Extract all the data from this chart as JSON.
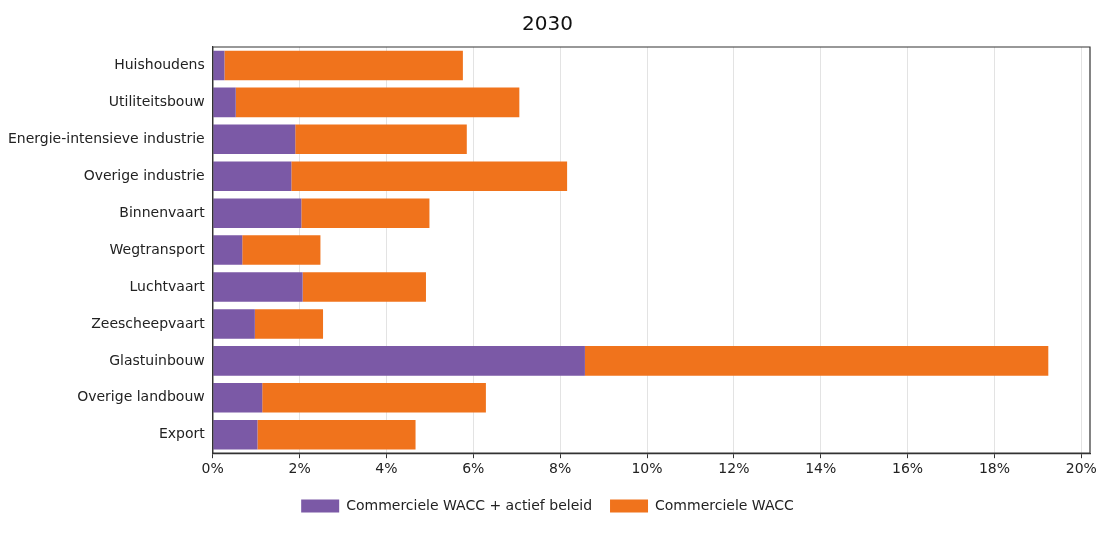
{
  "chart_data": {
    "type": "bar",
    "title": "2030",
    "orientation": "horizontal",
    "stacked": true,
    "categories": [
      "Huishoudens",
      "Utiliteitsbouw",
      "Energie-intensieve industrie",
      "Overige industrie",
      "Binnenvaart",
      "Wegtransport",
      "Luchtvaart",
      "Zeescheepvaart",
      "Glastuinbouw",
      "Overige landbouw",
      "Export"
    ],
    "series": [
      {
        "name": "Commerciele WACC + actief beleid",
        "color": "#7b59a6",
        "values": [
          0.27,
          0.53,
          1.9,
          1.81,
          2.04,
          0.68,
          2.07,
          0.97,
          8.57,
          1.14,
          1.03
        ]
      },
      {
        "name": "Commerciele WACC",
        "color": "#f0731c",
        "values": [
          5.49,
          6.53,
          3.95,
          6.35,
          2.95,
          1.8,
          2.84,
          1.57,
          10.67,
          5.15,
          3.64
        ]
      }
    ],
    "xlim": [
      0,
      20.2
    ],
    "xticks": [
      {
        "value": 0,
        "label": "0%"
      },
      {
        "value": 2,
        "label": "2%"
      },
      {
        "value": 4,
        "label": "4%"
      },
      {
        "value": 6,
        "label": "6%"
      },
      {
        "value": 8,
        "label": "8%"
      },
      {
        "value": 10,
        "label": "10%"
      },
      {
        "value": 12,
        "label": "12%"
      },
      {
        "value": 14,
        "label": "14%"
      },
      {
        "value": 16,
        "label": "16%"
      },
      {
        "value": 18,
        "label": "18%"
      },
      {
        "value": 20,
        "label": "20%"
      }
    ],
    "grid": "x",
    "legend": "bottom"
  }
}
